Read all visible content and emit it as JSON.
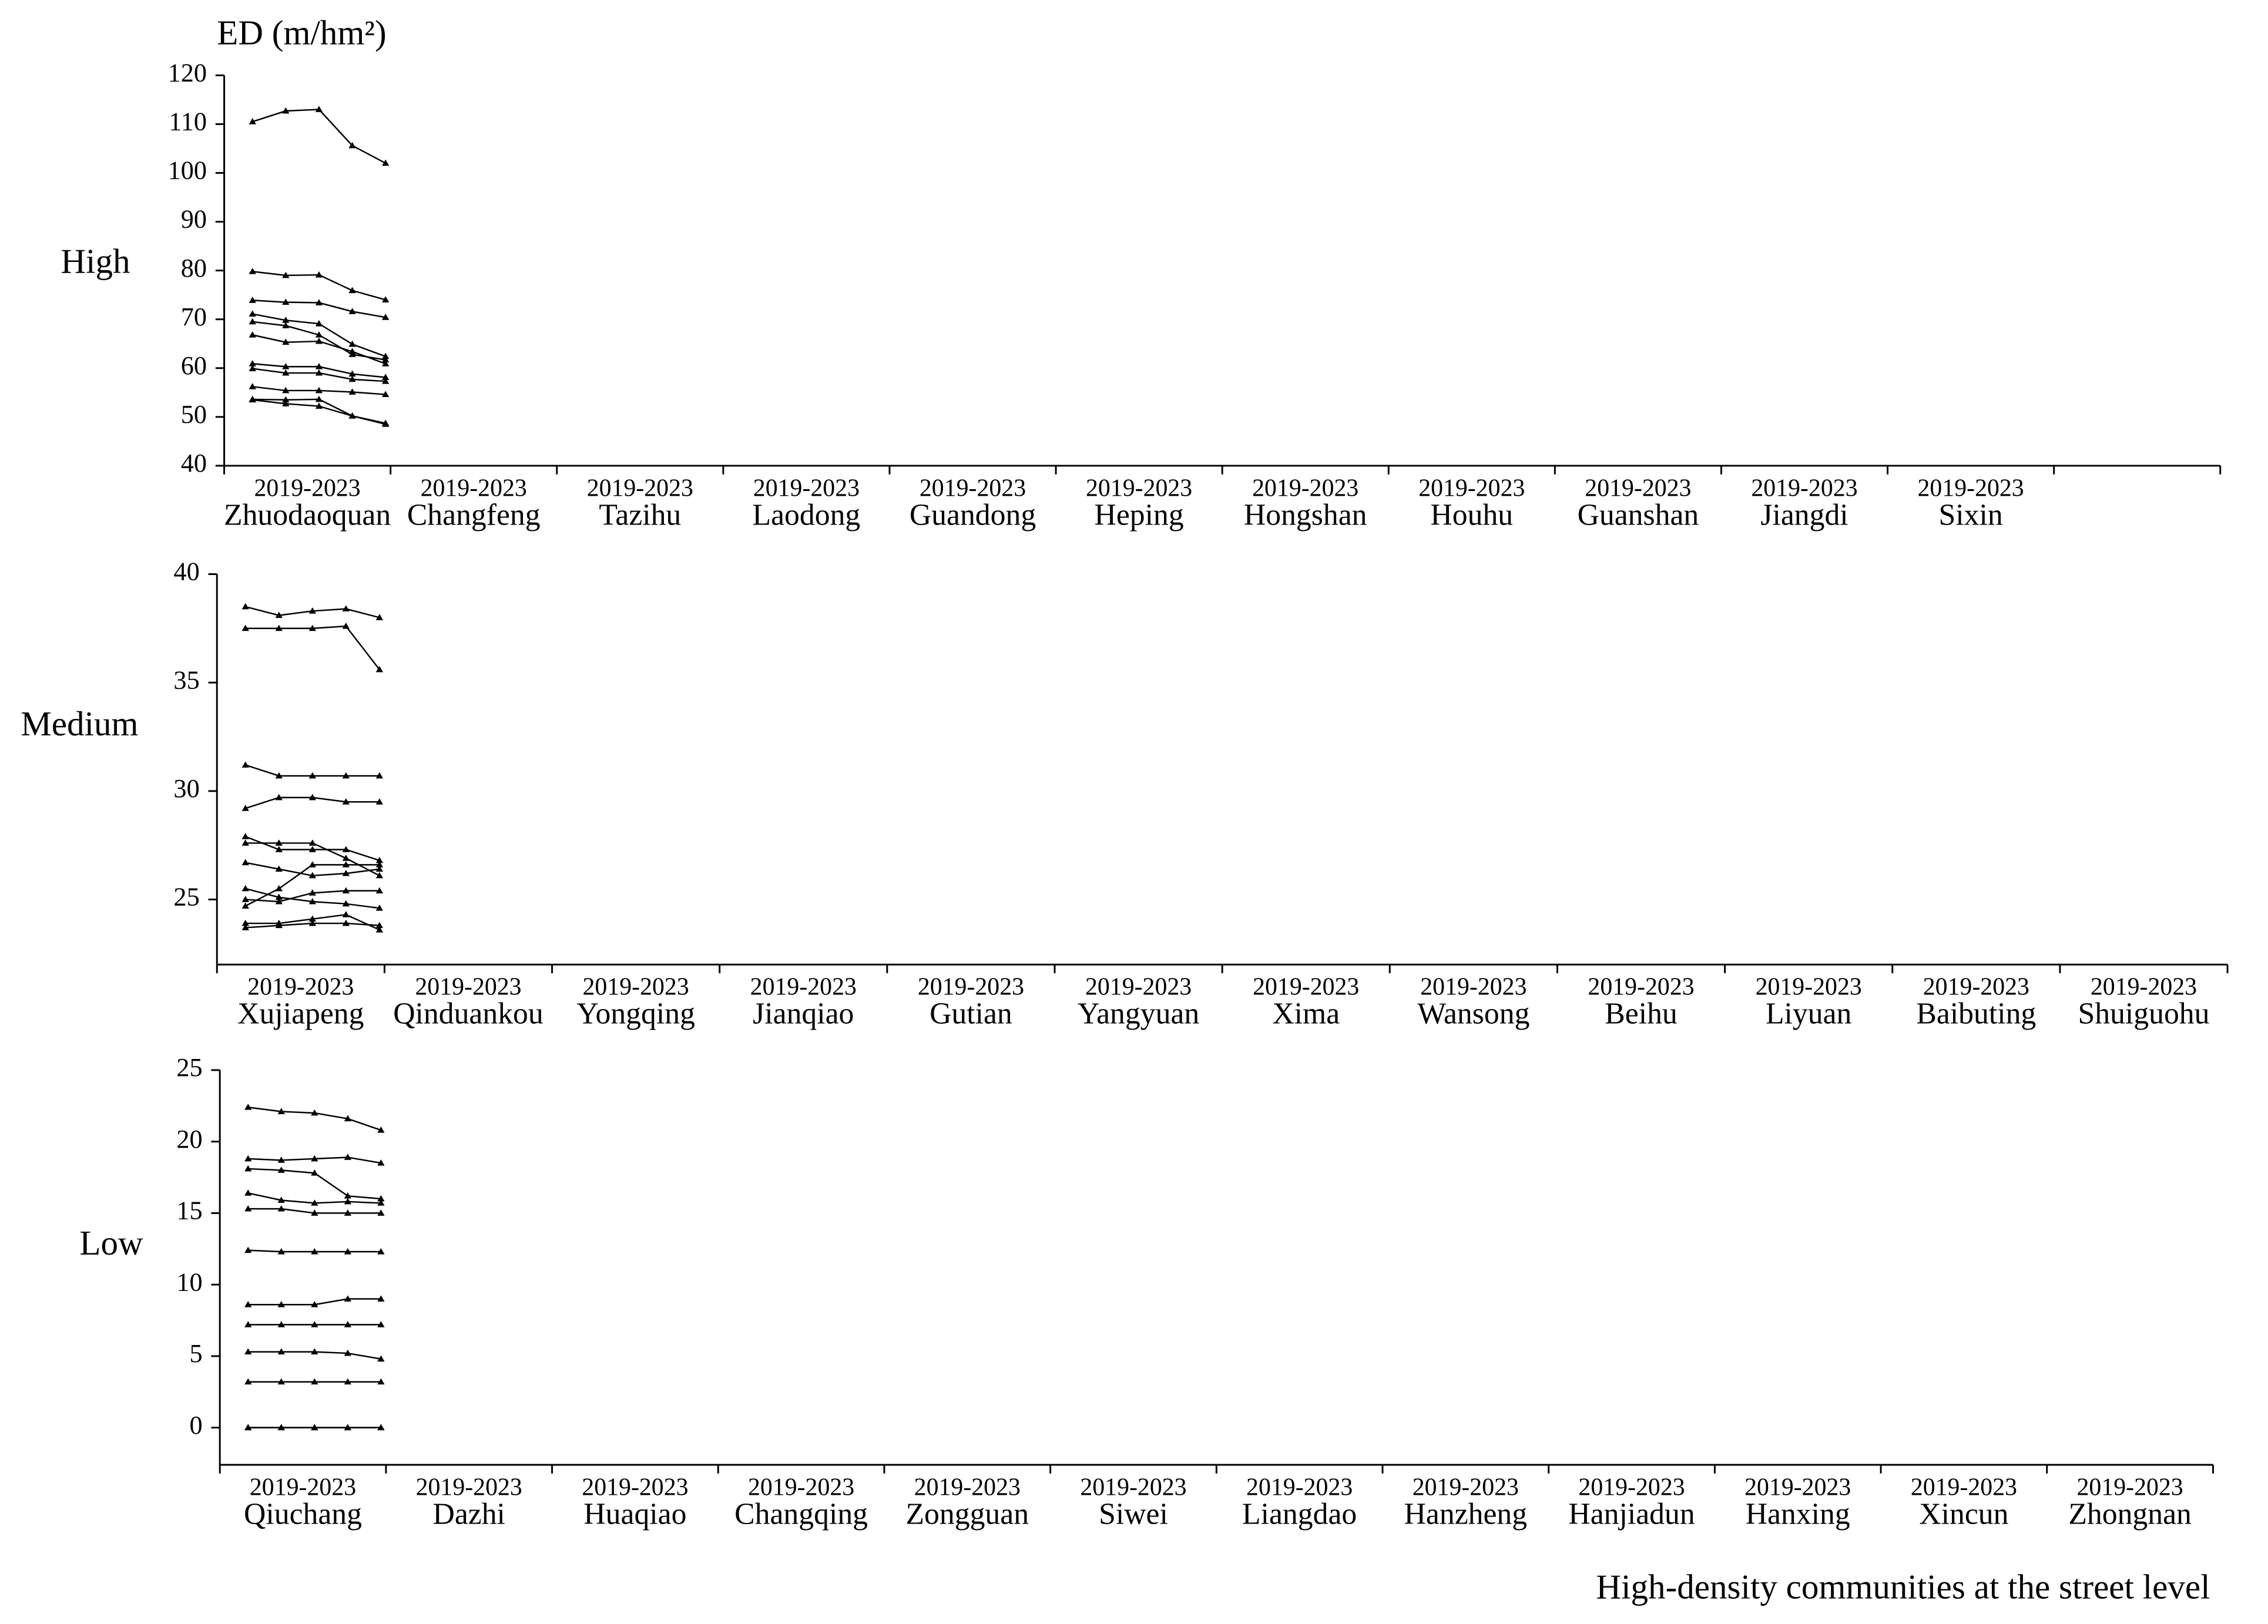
{
  "chart_data": [
    {
      "type": "line",
      "ylabel": "ED (m/hm²)",
      "label": "High",
      "period": "2019-2023",
      "categories": [
        "Zhuodaoquan",
        "Changfeng",
        "Tazihu",
        "Laodong",
        "Guandong",
        "Heping",
        "Hongshan",
        "Houhu",
        "Guanshan",
        "Jiangdi",
        "Sixin",
        null
      ],
      "values": [
        [
          53.5,
          52.7,
          52.2,
          50.2,
          48.7
        ],
        [
          53.6,
          53.5,
          53.6,
          50.2,
          48.5
        ],
        [
          56.2,
          55.4,
          55.4,
          55.1,
          54.6
        ],
        [
          59.9,
          59.0,
          59.0,
          57.7,
          57.3
        ],
        [
          60.9,
          60.3,
          60.3,
          58.8,
          58.1
        ],
        [
          66.8,
          65.3,
          65.5,
          63.4,
          60.9
        ],
        [
          69.5,
          68.7,
          66.8,
          62.8,
          61.7
        ],
        [
          71.1,
          69.8,
          69.1,
          64.9,
          62.4
        ],
        [
          73.9,
          73.5,
          73.4,
          71.6,
          70.4
        ],
        [
          79.8,
          79.0,
          79.1,
          75.9,
          74.0
        ],
        [
          110.5,
          112.7,
          113.0,
          105.6,
          102.0
        ],
        null
      ],
      "color": "#000000",
      "ylim": [
        40,
        120
      ],
      "yticks": [
        40,
        50,
        60,
        70,
        80,
        90,
        100,
        110,
        120
      ]
    },
    {
      "type": "line",
      "label": "Medium",
      "period": "2019-2023",
      "categories": [
        "Xujiapeng",
        "Qinduankou",
        "Yongqing",
        "Jianqiao",
        "Gutian",
        "Yangyuan",
        "Xima",
        "Wansong",
        "Beihu",
        "Liyuan",
        "Baibuting",
        "Shuiguohu"
      ],
      "values": [
        [
          23.7,
          23.8,
          23.9,
          23.9,
          23.8
        ],
        [
          23.9,
          23.9,
          24.1,
          24.3,
          23.6
        ],
        [
          24.7,
          25.5,
          26.6,
          26.6,
          26.6
        ],
        [
          25.0,
          24.9,
          25.3,
          25.4,
          25.4
        ],
        [
          25.5,
          25.1,
          24.9,
          24.8,
          24.6
        ],
        [
          26.7,
          26.4,
          26.1,
          26.2,
          26.4
        ],
        [
          27.6,
          27.6,
          27.6,
          26.9,
          26.1
        ],
        [
          27.9,
          27.3,
          27.3,
          27.3,
          26.8
        ],
        [
          29.2,
          29.7,
          29.7,
          29.5,
          29.5
        ],
        [
          31.2,
          30.7,
          30.7,
          30.7,
          30.7
        ],
        [
          37.5,
          37.5,
          37.5,
          37.6,
          35.6
        ],
        [
          38.5,
          38.1,
          38.3,
          38.4,
          38.0
        ]
      ],
      "color": "#000000",
      "ylim": [
        22,
        40
      ],
      "yticks": [
        25,
        30,
        35,
        40
      ]
    },
    {
      "type": "line",
      "label": "Low",
      "period": "2019-2023",
      "xlabel": "High-density communities at the street level",
      "categories": [
        "Qiuchang",
        "Dazhi",
        "Huaqiao",
        "Changqing",
        "Zongguan",
        "Siwei",
        "Liangdao",
        "Hanzheng",
        "Hanjiadun",
        "Hanxing",
        "Xincun",
        "Zhongnan"
      ],
      "values": [
        [
          0,
          0,
          0,
          0,
          0
        ],
        [
          0,
          0,
          0,
          0,
          0
        ],
        [
          3.2,
          3.2,
          3.2,
          3.2,
          3.2
        ],
        [
          5.3,
          5.3,
          5.3,
          5.2,
          4.8
        ],
        [
          7.2,
          7.2,
          7.2,
          7.2,
          7.2
        ],
        [
          8.6,
          8.6,
          8.6,
          9.0,
          9.0
        ],
        [
          12.4,
          12.3,
          12.3,
          12.3,
          12.3
        ],
        [
          15.3,
          15.3,
          15.0,
          15.0,
          15.0
        ],
        [
          16.4,
          15.9,
          15.7,
          15.8,
          15.7
        ],
        [
          18.1,
          18.0,
          17.8,
          16.2,
          16.0
        ],
        [
          18.8,
          18.7,
          18.8,
          18.9,
          18.5
        ],
        [
          22.4,
          22.1,
          22.0,
          21.6,
          20.8
        ]
      ],
      "color": "#000000",
      "ylim": [
        -2.6,
        25
      ],
      "yticks": [
        0,
        5,
        10,
        15,
        20,
        25
      ]
    }
  ]
}
